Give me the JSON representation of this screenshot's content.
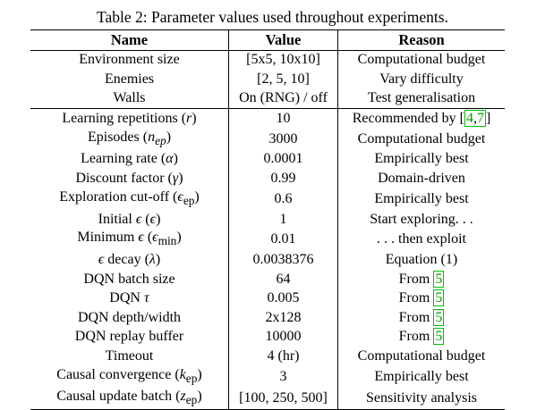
{
  "caption": "Table 2: Parameter values used throughout experiments.",
  "columns": [
    "Name",
    "Value",
    "Reason"
  ],
  "rows": [
    {
      "name": "Environment size",
      "value": "[5x5, 10x10]",
      "reason": "Computational budget"
    },
    {
      "name": "Enemies",
      "value": "[2, 5, 10]",
      "reason": "Vary difficulty"
    },
    {
      "name": "Walls",
      "value": "On (RNG) / off",
      "reason": "Test generalisation"
    },
    {
      "name": "Learning repetitions (r)",
      "value": "10",
      "reason_prefix": "Recommended by [",
      "reason_cite1": "4",
      "reason_mid": ",",
      "reason_cite2": "7",
      "reason_suffix": "]"
    },
    {
      "name": "Episodes (n_ep)",
      "value": "3000",
      "reason": "Computational budget"
    },
    {
      "name": "Learning rate (α)",
      "value": "0.0001",
      "reason": "Empirically best"
    },
    {
      "name": "Discount factor (γ)",
      "value": "0.99",
      "reason": "Domain-driven"
    },
    {
      "name": "Exploration cut-off (ϵ_ep)",
      "value": "0.6",
      "reason": "Empirically best"
    },
    {
      "name": "Initial ϵ (ϵ)",
      "value": "1",
      "reason": "Start exploring. . ."
    },
    {
      "name": "Minimum ϵ (ϵ_min)",
      "value": "0.01",
      "reason": ". . . then exploit"
    },
    {
      "name": "ϵ decay (λ)",
      "value": "0.0038376",
      "reason": "Equation (1)"
    },
    {
      "name": "DQN batch size",
      "value": "64",
      "reason_prefix": "From ",
      "reason_cite1": "5"
    },
    {
      "name": "DQN τ",
      "value": "0.005",
      "reason_prefix": "From ",
      "reason_cite1": "5"
    },
    {
      "name": "DQN depth/width",
      "value": "2x128",
      "reason_prefix": "From ",
      "reason_cite1": "5"
    },
    {
      "name": "DQN replay buffer",
      "value": "10000",
      "reason_prefix": "From ",
      "reason_cite1": "5"
    },
    {
      "name": "Timeout",
      "value": "4 (hr)",
      "reason": "Computational budget"
    },
    {
      "name": "Causal convergence (k_ep)",
      "value": "3",
      "reason": "Empirically best"
    },
    {
      "name": "Causal update batch (z_ep)",
      "value": "[100, 250, 500]",
      "reason": "Sensitivity analysis"
    }
  ],
  "name_parts": {
    "r3_a": "Learning repetitions (",
    "r3_v": "r",
    "r3_b": ")",
    "r4_a": "Episodes (",
    "r4_v": "n",
    "r4_s": "ep",
    "r4_b": ")",
    "r5_a": "Learning rate (",
    "r5_v": "α",
    "r5_b": ")",
    "r6_a": "Discount factor (",
    "r6_v": "γ",
    "r6_b": ")",
    "r7_a": "Exploration cut-off (",
    "r7_v": "ϵ",
    "r7_s": "ep",
    "r7_b": ")",
    "r8_a": "Initial ",
    "r8_v1": "ϵ",
    "r8_m": " (",
    "r8_v2": "ϵ",
    "r8_b": ")",
    "r9_a": "Minimum ",
    "r9_v1": "ϵ",
    "r9_m": " (",
    "r9_v2": "ϵ",
    "r9_s": "min",
    "r9_b": ")",
    "r10_v1": "ϵ",
    "r10_a": " decay (",
    "r10_v2": "λ",
    "r10_b": ")",
    "r12_a": "DQN ",
    "r12_v": "τ",
    "r16_a": "Causal convergence (",
    "r16_v": "k",
    "r16_s": "ep",
    "r16_b": ")",
    "r17_a": "Causal update batch (",
    "r17_v": "z",
    "r17_s": "ep",
    "r17_b": ")"
  }
}
